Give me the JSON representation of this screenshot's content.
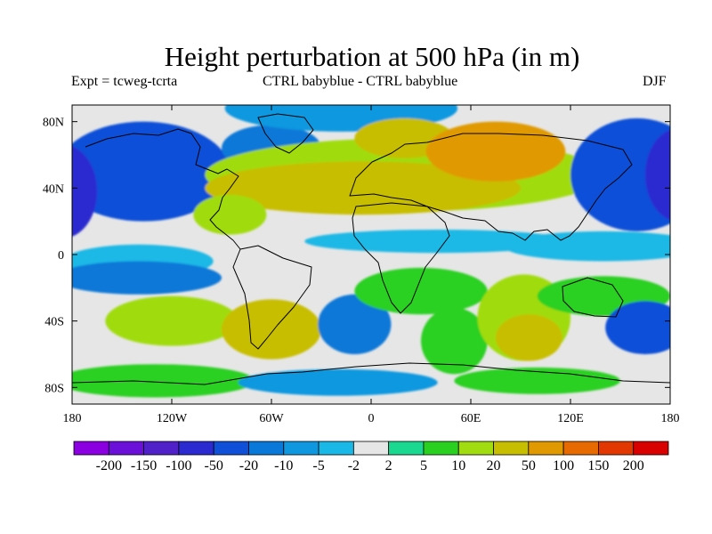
{
  "title": "Height perturbation at 500 hPa (in m)",
  "subtitle_left": "Expt = tcweg-tcrta",
  "subtitle_center": "CTRL babyblue - CTRL babyblue",
  "subtitle_right": "DJF",
  "map": {
    "projection": "cylindrical-equidistant",
    "lon_range": [
      -180,
      180
    ],
    "lat_range": [
      -90,
      90
    ],
    "lon_ticks": [
      {
        "value": -180,
        "label": "180"
      },
      {
        "value": -120,
        "label": "120W"
      },
      {
        "value": -60,
        "label": "60W"
      },
      {
        "value": 0,
        "label": "0"
      },
      {
        "value": 60,
        "label": "60E"
      },
      {
        "value": 120,
        "label": "120E"
      },
      {
        "value": 180,
        "label": "180"
      }
    ],
    "lat_ticks": [
      {
        "value": 80,
        "label": "80N"
      },
      {
        "value": 40,
        "label": "40N"
      },
      {
        "value": 0,
        "label": "0"
      },
      {
        "value": -40,
        "label": "40S"
      },
      {
        "value": -80,
        "label": "80S"
      }
    ],
    "background_color": "#e6e6e6",
    "coastline_color": "#000000"
  },
  "colorbar": {
    "colors": [
      "#8a00e0",
      "#6a10d8",
      "#5020c8",
      "#2a2ad0",
      "#1050d8",
      "#0a78d8",
      "#0f98e0",
      "#1ab8e6",
      "#e6e6e6",
      "#1ad890",
      "#2ad020",
      "#a0dc10",
      "#c8be00",
      "#e09a00",
      "#e66a00",
      "#e23800",
      "#d80000"
    ],
    "labels": [
      "-200",
      "-150",
      "-100",
      "-50",
      "-20",
      "-10",
      "-5",
      "-2",
      "2",
      "5",
      "10",
      "20",
      "50",
      "100",
      "150",
      "200"
    ]
  },
  "chart_data": {
    "type": "heatmap",
    "title": "Height perturbation at 500 hPa (in m)",
    "variable": "500 hPa height perturbation",
    "units": "m",
    "season": "DJF",
    "levels": [
      -200,
      -150,
      -100,
      -50,
      -20,
      -10,
      -5,
      -2,
      2,
      5,
      10,
      20,
      50,
      100,
      150,
      200
    ],
    "features": [
      {
        "lon": -125,
        "lat": 56,
        "rx": 22,
        "ry": 14,
        "value": 45
      },
      {
        "lon": -137,
        "lat": 50,
        "rx": 52,
        "ry": 30,
        "value": -22
      },
      {
        "lon": -185,
        "lat": 38,
        "rx": 20,
        "ry": 28,
        "value": -60
      },
      {
        "lon": -60,
        "lat": 64,
        "rx": 30,
        "ry": 14,
        "value": -18
      },
      {
        "lon": -18,
        "lat": 88,
        "rx": 70,
        "ry": 14,
        "value": -10
      },
      {
        "lon": 20,
        "lat": 48,
        "rx": 120,
        "ry": 22,
        "value": 16
      },
      {
        "lon": -5,
        "lat": 40,
        "rx": 95,
        "ry": 16,
        "value": 28
      },
      {
        "lon": -85,
        "lat": 24,
        "rx": 22,
        "ry": 12,
        "value": 10
      },
      {
        "lon": 20,
        "lat": 70,
        "rx": 30,
        "ry": 12,
        "value": 25
      },
      {
        "lon": 75,
        "lat": 62,
        "rx": 42,
        "ry": 18,
        "value": 50
      },
      {
        "lon": 73,
        "lat": 66,
        "rx": 14,
        "ry": 8,
        "value": 60
      },
      {
        "lon": 160,
        "lat": 48,
        "rx": 40,
        "ry": 34,
        "value": -40
      },
      {
        "lon": 185,
        "lat": 48,
        "rx": 20,
        "ry": 28,
        "value": -60
      },
      {
        "lon": 140,
        "lat": 5,
        "rx": 60,
        "ry": 9,
        "value": -5
      },
      {
        "lon": 40,
        "lat": 8,
        "rx": 80,
        "ry": 7,
        "value": -5
      },
      {
        "lon": -140,
        "lat": -4,
        "rx": 45,
        "ry": 10,
        "value": -5
      },
      {
        "lon": -140,
        "lat": -14,
        "rx": 50,
        "ry": 10,
        "value": -12
      },
      {
        "lon": -120,
        "lat": -40,
        "rx": 40,
        "ry": 15,
        "value": 10
      },
      {
        "lon": -60,
        "lat": -45,
        "rx": 30,
        "ry": 18,
        "value": 25
      },
      {
        "lon": -70,
        "lat": -45,
        "rx": 18,
        "ry": 10,
        "value": 40
      },
      {
        "lon": -10,
        "lat": -42,
        "rx": 22,
        "ry": 18,
        "value": -12
      },
      {
        "lon": 30,
        "lat": -22,
        "rx": 40,
        "ry": 14,
        "value": 8
      },
      {
        "lon": 50,
        "lat": -52,
        "rx": 20,
        "ry": 20,
        "value": 6
      },
      {
        "lon": 92,
        "lat": -38,
        "rx": 28,
        "ry": 26,
        "value": 14
      },
      {
        "lon": 95,
        "lat": -50,
        "rx": 20,
        "ry": 14,
        "value": 25
      },
      {
        "lon": 140,
        "lat": -25,
        "rx": 40,
        "ry": 12,
        "value": 6
      },
      {
        "lon": 165,
        "lat": -44,
        "rx": 24,
        "ry": 16,
        "value": -25
      },
      {
        "lon": -130,
        "lat": -76,
        "rx": 60,
        "ry": 10,
        "value": 8
      },
      {
        "lon": -20,
        "lat": -77,
        "rx": 60,
        "ry": 8,
        "value": -8
      },
      {
        "lon": 100,
        "lat": -76,
        "rx": 50,
        "ry": 8,
        "value": 6
      }
    ]
  }
}
